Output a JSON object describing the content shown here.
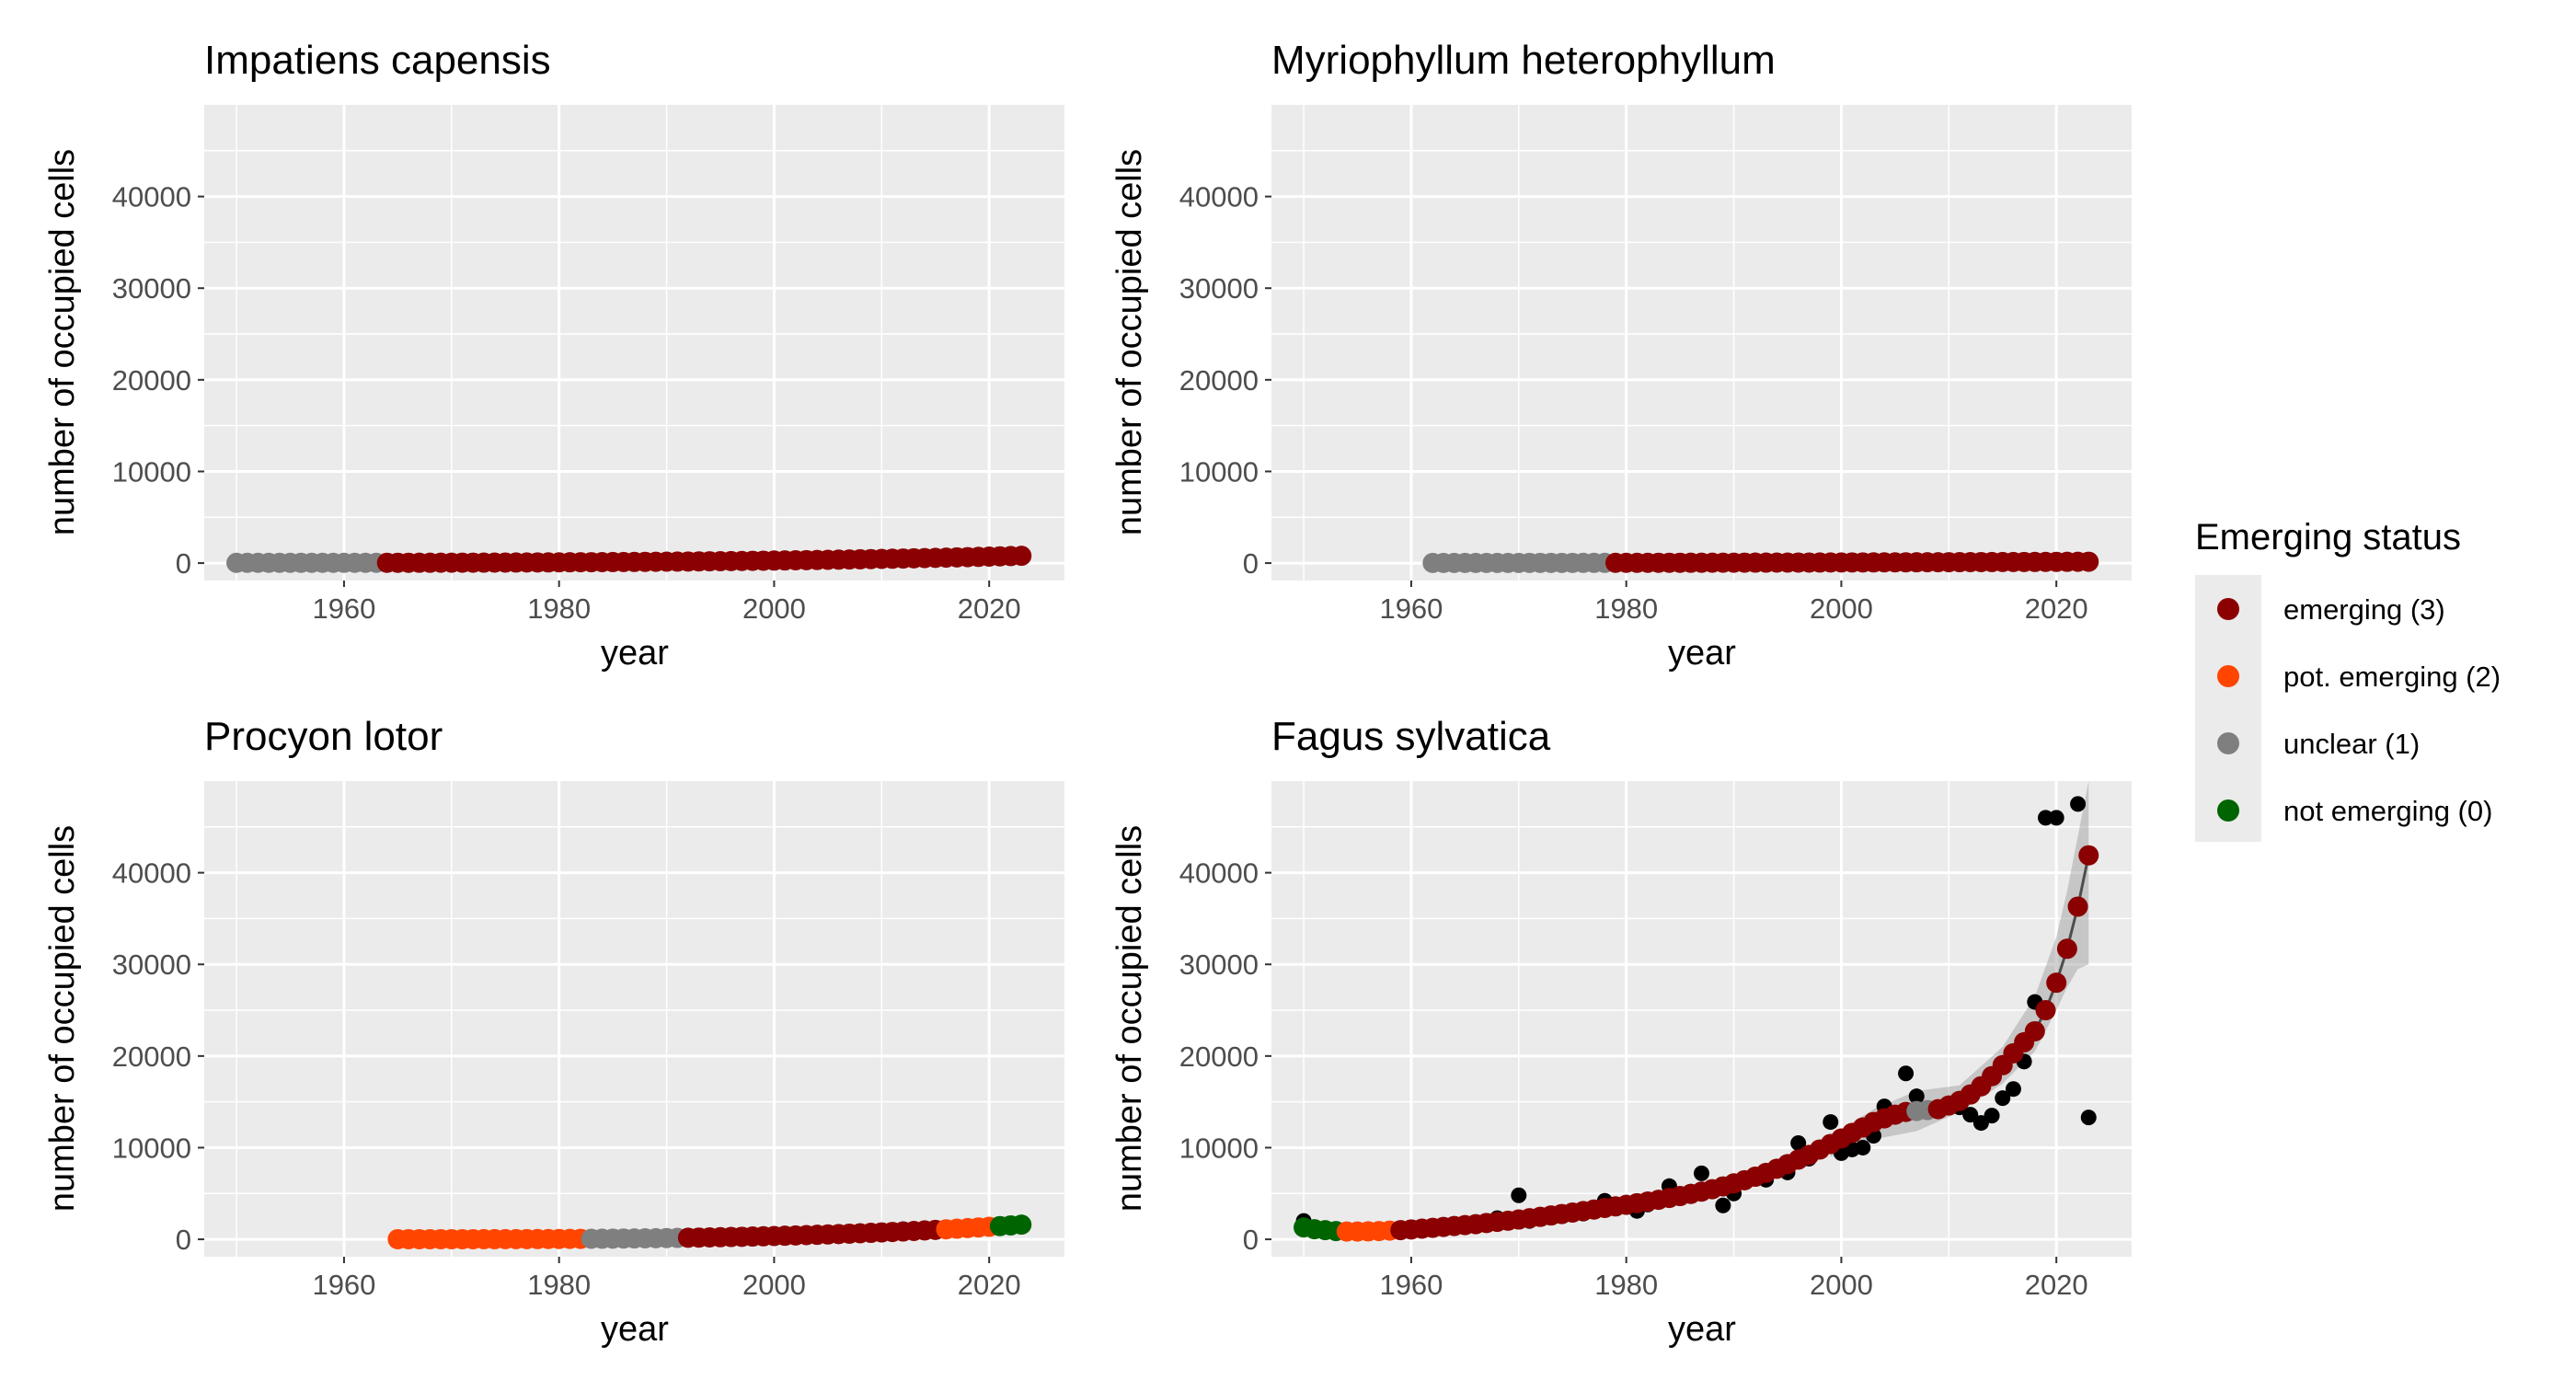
{
  "legend": {
    "title": "Emerging status",
    "entries": [
      {
        "label": "emerging (3)",
        "color": "#8b0000"
      },
      {
        "label": "pot. emerging (2)",
        "color": "#ff4500"
      },
      {
        "label": "unclear (1)",
        "color": "#7f7f7f"
      },
      {
        "label": "not emerging (0)",
        "color": "#006400"
      }
    ]
  },
  "chart_data": [
    {
      "type": "scatter",
      "title": "Impatiens capensis",
      "xlabel": "year",
      "ylabel": "number of occupied cells",
      "xlim": [
        1947,
        2027
      ],
      "ylim": [
        -1900,
        50000
      ],
      "x_ticks": [
        1960,
        1980,
        2000,
        2020
      ],
      "y_ticks": [
        0,
        10000,
        20000,
        30000,
        40000
      ],
      "grid": true,
      "trend": {
        "start_year": 1950,
        "end_year": 2023,
        "start_value": 30,
        "end_value": 800,
        "power": 3
      },
      "status_segments": [
        {
          "status": "unclear (1)",
          "from": 1950,
          "to": 1963
        },
        {
          "status": "emerging (3)",
          "from": 1964,
          "to": 2023
        }
      ],
      "observed": [],
      "ribbon": null
    },
    {
      "type": "scatter",
      "title": "Myriophyllum heterophyllum",
      "xlabel": "year",
      "ylabel": "number of occupied cells",
      "xlim": [
        1947,
        2027
      ],
      "ylim": [
        -1900,
        50000
      ],
      "x_ticks": [
        1960,
        1980,
        2000,
        2020
      ],
      "y_ticks": [
        0,
        10000,
        20000,
        30000,
        40000
      ],
      "grid": true,
      "trend": {
        "start_year": 1962,
        "end_year": 2023,
        "start_value": 20,
        "end_value": 150,
        "power": 2
      },
      "status_segments": [
        {
          "status": "unclear (1)",
          "from": 1962,
          "to": 1978
        },
        {
          "status": "emerging (3)",
          "from": 1979,
          "to": 2023
        }
      ],
      "observed": [],
      "ribbon": null
    },
    {
      "type": "scatter",
      "title": "Procyon lotor",
      "xlabel": "year",
      "ylabel": "number of occupied cells",
      "xlim": [
        1947,
        2027
      ],
      "ylim": [
        -1900,
        50000
      ],
      "x_ticks": [
        1960,
        1980,
        2000,
        2020
      ],
      "y_ticks": [
        0,
        10000,
        20000,
        30000,
        40000
      ],
      "grid": true,
      "trend": {
        "start_year": 1965,
        "end_year": 2023,
        "start_value": 10,
        "end_value": 1600,
        "power": 3
      },
      "status_segments": [
        {
          "status": "pot. emerging (2)",
          "from": 1965,
          "to": 1982
        },
        {
          "status": "unclear (1)",
          "from": 1983,
          "to": 1991
        },
        {
          "status": "emerging (3)",
          "from": 1992,
          "to": 2015
        },
        {
          "status": "pot. emerging (2)",
          "from": 2016,
          "to": 2020
        },
        {
          "status": "not emerging (0)",
          "from": 2021,
          "to": 2023
        }
      ],
      "observed": [],
      "ribbon": null
    },
    {
      "type": "scatter",
      "title": "Fagus sylvatica",
      "xlabel": "year",
      "ylabel": "number of occupied cells",
      "xlim": [
        1947,
        2027
      ],
      "ylim": [
        -1900,
        50000
      ],
      "x_ticks": [
        1960,
        1980,
        2000,
        2020
      ],
      "y_ticks": [
        0,
        10000,
        20000,
        30000,
        40000
      ],
      "grid": true,
      "trend": null,
      "fitted": [
        [
          1950,
          1300
        ],
        [
          1951,
          1100
        ],
        [
          1952,
          1000
        ],
        [
          1953,
          900
        ],
        [
          1954,
          850
        ],
        [
          1955,
          850
        ],
        [
          1956,
          870
        ],
        [
          1957,
          900
        ],
        [
          1958,
          950
        ],
        [
          1959,
          1000
        ],
        [
          1960,
          1080
        ],
        [
          1961,
          1160
        ],
        [
          1962,
          1250
        ],
        [
          1963,
          1350
        ],
        [
          1964,
          1450
        ],
        [
          1965,
          1550
        ],
        [
          1966,
          1650
        ],
        [
          1967,
          1780
        ],
        [
          1968,
          1900
        ],
        [
          1969,
          2030
        ],
        [
          1970,
          2160
        ],
        [
          1971,
          2300
        ],
        [
          1972,
          2450
        ],
        [
          1973,
          2600
        ],
        [
          1974,
          2760
        ],
        [
          1975,
          2920
        ],
        [
          1976,
          3080
        ],
        [
          1977,
          3250
        ],
        [
          1978,
          3420
        ],
        [
          1979,
          3590
        ],
        [
          1980,
          3760
        ],
        [
          1981,
          3940
        ],
        [
          1982,
          4120
        ],
        [
          1983,
          4310
        ],
        [
          1984,
          4510
        ],
        [
          1985,
          4720
        ],
        [
          1986,
          4950
        ],
        [
          1987,
          5200
        ],
        [
          1988,
          5470
        ],
        [
          1989,
          5770
        ],
        [
          1990,
          6100
        ],
        [
          1991,
          6450
        ],
        [
          1992,
          6830
        ],
        [
          1993,
          7250
        ],
        [
          1994,
          7700
        ],
        [
          1995,
          8200
        ],
        [
          1996,
          8700
        ],
        [
          1997,
          9200
        ],
        [
          1998,
          9800
        ],
        [
          1999,
          10400
        ],
        [
          2000,
          11000
        ],
        [
          2001,
          11600
        ],
        [
          2002,
          12200
        ],
        [
          2003,
          12800
        ],
        [
          2004,
          13200
        ],
        [
          2005,
          13600
        ],
        [
          2006,
          13900
        ],
        [
          2007,
          14000
        ],
        [
          2008,
          14100
        ],
        [
          2009,
          14200
        ],
        [
          2010,
          14600
        ],
        [
          2011,
          15100
        ],
        [
          2012,
          15800
        ],
        [
          2013,
          16700
        ],
        [
          2014,
          17800
        ],
        [
          2015,
          19000
        ],
        [
          2016,
          20300
        ],
        [
          2017,
          21500
        ],
        [
          2018,
          22700
        ],
        [
          2019,
          25000
        ],
        [
          2020,
          28000
        ],
        [
          2021,
          31700
        ],
        [
          2022,
          36300
        ],
        [
          2023,
          41900
        ]
      ],
      "status_segments": [
        {
          "status": "not emerging (0)",
          "from": 1950,
          "to": 1953
        },
        {
          "status": "pot. emerging (2)",
          "from": 1954,
          "to": 1958
        },
        {
          "status": "emerging (3)",
          "from": 1959,
          "to": 2006
        },
        {
          "status": "unclear (1)",
          "from": 2007,
          "to": 2008
        },
        {
          "status": "emerging (3)",
          "from": 2009,
          "to": 2023
        }
      ],
      "observed": [
        [
          1950,
          2000
        ],
        [
          1951,
          1200
        ],
        [
          1952,
          800
        ],
        [
          1953,
          900
        ],
        [
          1955,
          800
        ],
        [
          1957,
          900
        ],
        [
          1960,
          1000
        ],
        [
          1962,
          1100
        ],
        [
          1964,
          1300
        ],
        [
          1966,
          1500
        ],
        [
          1968,
          2300
        ],
        [
          1970,
          4800
        ],
        [
          1971,
          2000
        ],
        [
          1973,
          2600
        ],
        [
          1975,
          3000
        ],
        [
          1976,
          2800
        ],
        [
          1978,
          4200
        ],
        [
          1979,
          3500
        ],
        [
          1980,
          4000
        ],
        [
          1981,
          3100
        ],
        [
          1982,
          3800
        ],
        [
          1984,
          5800
        ],
        [
          1985,
          4700
        ],
        [
          1986,
          5200
        ],
        [
          1987,
          7200
        ],
        [
          1988,
          5300
        ],
        [
          1989,
          3700
        ],
        [
          1990,
          5000
        ],
        [
          1993,
          6500
        ],
        [
          1995,
          7300
        ],
        [
          1996,
          10500
        ],
        [
          1997,
          8800
        ],
        [
          1999,
          12800
        ],
        [
          2000,
          9400
        ],
        [
          2001,
          9800
        ],
        [
          2002,
          10000
        ],
        [
          2003,
          11300
        ],
        [
          2004,
          14500
        ],
        [
          2005,
          13800
        ],
        [
          2006,
          18100
        ],
        [
          2007,
          15600
        ],
        [
          2008,
          14200
        ],
        [
          2011,
          14400
        ],
        [
          2012,
          13600
        ],
        [
          2013,
          12700
        ],
        [
          2014,
          13500
        ],
        [
          2015,
          15400
        ],
        [
          2016,
          16400
        ],
        [
          2017,
          19400
        ],
        [
          2018,
          25900
        ],
        [
          2019,
          46000
        ],
        [
          2020,
          46000
        ],
        [
          2022,
          47500
        ],
        [
          2023,
          13300
        ]
      ],
      "ribbon": [
        [
          1999,
          9000,
          11200
        ],
        [
          2003,
          10900,
          14200
        ],
        [
          2007,
          11800,
          16200
        ],
        [
          2011,
          13900,
          16800
        ],
        [
          2015,
          17000,
          21000
        ],
        [
          2018,
          20500,
          26500
        ],
        [
          2020,
          25000,
          33000
        ],
        [
          2021,
          27500,
          38000
        ],
        [
          2022,
          29500,
          44000
        ],
        [
          2023,
          30000,
          50000
        ]
      ]
    }
  ]
}
